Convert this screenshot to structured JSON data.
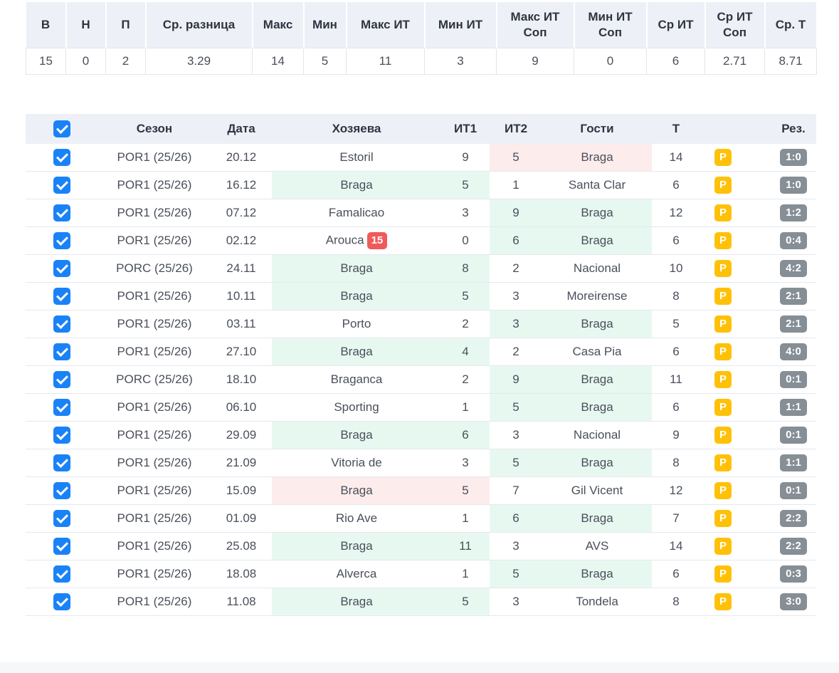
{
  "stats": {
    "headers": [
      "В",
      "Н",
      "П",
      "Ср. разница",
      "Макс",
      "Мин",
      "Макс ИТ",
      "Мин ИТ",
      "Макс ИТ Соп",
      "Мин ИТ Соп",
      "Ср ИТ",
      "Ср ИТ Соп",
      "Ср. Т"
    ],
    "values": [
      "15",
      "0",
      "2",
      "3.29",
      "14",
      "5",
      "11",
      "3",
      "9",
      "0",
      "6",
      "2.71",
      "8.71"
    ]
  },
  "matches": {
    "headers": {
      "season": "Сезон",
      "date": "Дата",
      "home": "Хозяева",
      "it1": "ИТ1",
      "it2": "ИТ2",
      "away": "Гости",
      "total": "Т",
      "result": "Рез."
    },
    "p_label": "P",
    "highlight_colors": {
      "win": "#e7f8f1",
      "lose": "#fdecec"
    },
    "rows": [
      {
        "season": "POR1 (25/26)",
        "date": "20.12",
        "home": "Estoril",
        "it1": "9",
        "it2": "5",
        "away": "Braga",
        "total": "14",
        "result": "1:0",
        "hl": "away-lose"
      },
      {
        "season": "POR1 (25/26)",
        "date": "16.12",
        "home": "Braga",
        "it1": "5",
        "it2": "1",
        "away": "Santa Clar",
        "total": "6",
        "result": "1:0",
        "hl": "home-win"
      },
      {
        "season": "POR1 (25/26)",
        "date": "07.12",
        "home": "Famalicao",
        "it1": "3",
        "it2": "9",
        "away": "Braga",
        "total": "12",
        "result": "1:2",
        "hl": "away-win"
      },
      {
        "season": "POR1 (25/26)",
        "date": "02.12",
        "home": "Arouca",
        "home_badge": "15",
        "it1": "0",
        "it2": "6",
        "away": "Braga",
        "total": "6",
        "result": "0:4",
        "hl": "away-win"
      },
      {
        "season": "PORC (25/26)",
        "date": "24.11",
        "home": "Braga",
        "it1": "8",
        "it2": "2",
        "away": "Nacional",
        "total": "10",
        "result": "4:2",
        "hl": "home-win"
      },
      {
        "season": "POR1 (25/26)",
        "date": "10.11",
        "home": "Braga",
        "it1": "5",
        "it2": "3",
        "away": "Moreirense",
        "total": "8",
        "result": "2:1",
        "hl": "home-win"
      },
      {
        "season": "POR1 (25/26)",
        "date": "03.11",
        "home": "Porto",
        "it1": "2",
        "it2": "3",
        "away": "Braga",
        "total": "5",
        "result": "2:1",
        "hl": "away-win"
      },
      {
        "season": "POR1 (25/26)",
        "date": "27.10",
        "home": "Braga",
        "it1": "4",
        "it2": "2",
        "away": "Casa Pia",
        "total": "6",
        "result": "4:0",
        "hl": "home-win"
      },
      {
        "season": "PORC (25/26)",
        "date": "18.10",
        "home": "Braganca",
        "it1": "2",
        "it2": "9",
        "away": "Braga",
        "total": "11",
        "result": "0:1",
        "hl": "away-win"
      },
      {
        "season": "POR1 (25/26)",
        "date": "06.10",
        "home": "Sporting",
        "it1": "1",
        "it2": "5",
        "away": "Braga",
        "total": "6",
        "result": "1:1",
        "hl": "away-win"
      },
      {
        "season": "POR1 (25/26)",
        "date": "29.09",
        "home": "Braga",
        "it1": "6",
        "it2": "3",
        "away": "Nacional",
        "total": "9",
        "result": "0:1",
        "hl": "home-win"
      },
      {
        "season": "POR1 (25/26)",
        "date": "21.09",
        "home": "Vitoria de",
        "it1": "3",
        "it2": "5",
        "away": "Braga",
        "total": "8",
        "result": "1:1",
        "hl": "away-win"
      },
      {
        "season": "POR1 (25/26)",
        "date": "15.09",
        "home": "Braga",
        "it1": "5",
        "it2": "7",
        "away": "Gil Vicent",
        "total": "12",
        "result": "0:1",
        "hl": "home-lose"
      },
      {
        "season": "POR1 (25/26)",
        "date": "01.09",
        "home": "Rio Ave",
        "it1": "1",
        "it2": "6",
        "away": "Braga",
        "total": "7",
        "result": "2:2",
        "hl": "away-win"
      },
      {
        "season": "POR1 (25/26)",
        "date": "25.08",
        "home": "Braga",
        "it1": "11",
        "it2": "3",
        "away": "AVS",
        "total": "14",
        "result": "2:2",
        "hl": "home-win"
      },
      {
        "season": "POR1 (25/26)",
        "date": "18.08",
        "home": "Alverca",
        "it1": "1",
        "it2": "5",
        "away": "Braga",
        "total": "6",
        "result": "0:3",
        "hl": "away-win"
      },
      {
        "season": "POR1 (25/26)",
        "date": "11.08",
        "home": "Braga",
        "it1": "5",
        "it2": "3",
        "away": "Tondela",
        "total": "8",
        "result": "3:0",
        "hl": "home-win"
      }
    ]
  }
}
